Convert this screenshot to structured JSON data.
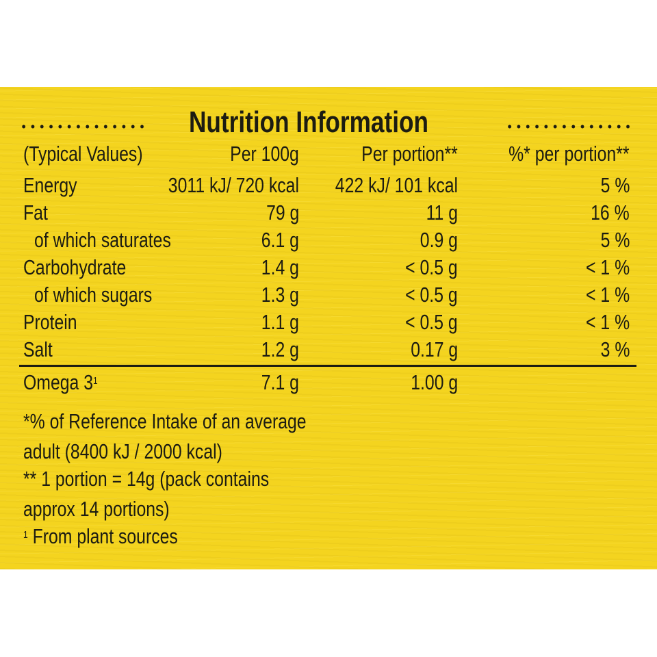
{
  "title": "Nutrition Information",
  "header": {
    "label": "(Typical Values)",
    "per100": "Per 100g",
    "perPortion": "Per portion**",
    "pctPortion": "%* per portion**"
  },
  "rows": [
    {
      "name": "Energy",
      "per100": "3011 kJ/ 720 kcal",
      "perPortion": "422 kJ/ 101 kcal",
      "pct": "5 %"
    },
    {
      "name": "Fat",
      "per100": "79 g",
      "perPortion": "11 g",
      "pct": "16 %"
    },
    {
      "name": "of which saturates",
      "per100": "6.1 g",
      "perPortion": "0.9 g",
      "pct": "5 %"
    },
    {
      "name": "Carbohydrate",
      "per100": "1.4 g",
      "perPortion": "< 0.5 g",
      "pct": "< 1 %"
    },
    {
      "name": "of which sugars",
      "per100": "1.3 g",
      "perPortion": "< 0.5 g",
      "pct": "< 1 %"
    },
    {
      "name": "Protein",
      "per100": "1.1 g",
      "perPortion": "< 0.5 g",
      "pct": "< 1 %"
    },
    {
      "name": "Salt",
      "per100": "1.2 g",
      "perPortion": "0.17 g",
      "pct": "3 %"
    }
  ],
  "omega": {
    "name": "Omega 3",
    "footnote_mark": "1",
    "per100": "7.1 g",
    "perPortion": "1.00 g"
  },
  "footnotes": [
    "*% of Reference Intake of an average",
    "adult (8400 kJ / 2000 kcal)",
    "** 1 portion = 14g (pack contains",
    "approx 14 portions)"
  ],
  "source_note": {
    "mark": "1",
    "text": "From plant sources"
  },
  "colors": {
    "background": "#f4d41f",
    "text": "#1c1c12"
  }
}
